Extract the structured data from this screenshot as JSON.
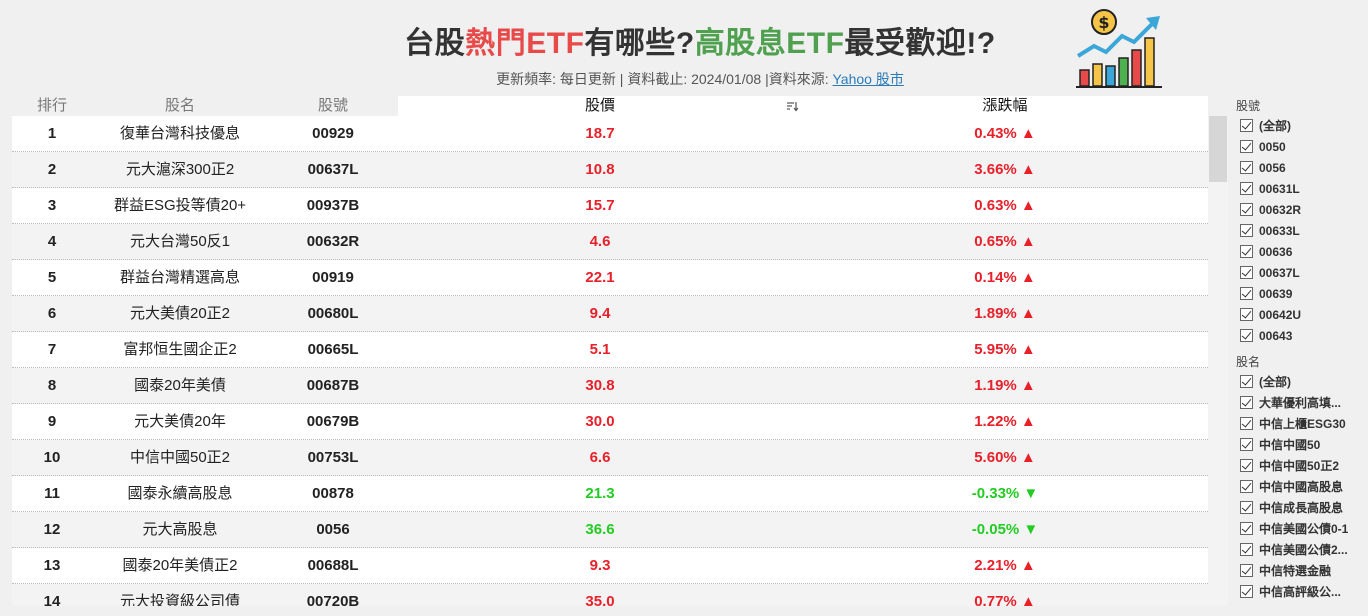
{
  "title": {
    "part1": "台股",
    "part2": "熱門ETF",
    "part3": "有哪些?",
    "part4": "高股息ETF",
    "part5": "最受歡迎!?"
  },
  "subtitle": {
    "text": "更新頻率: 每日更新 | 資料截止: 2024/01/08 |資料來源: ",
    "link": "Yahoo 股市"
  },
  "table": {
    "headers": {
      "rank": "排行",
      "name": "股名",
      "code": "股號",
      "price": "股價",
      "change": "漲跌幅"
    },
    "colors": {
      "up": "#e8202a",
      "down": "#22cc22"
    },
    "rows": [
      {
        "rank": "1",
        "name": "復華台灣科技優息",
        "code": "00929",
        "price": "18.7",
        "change": "0.43%",
        "dir": "up"
      },
      {
        "rank": "2",
        "name": "元大滬深300正2",
        "code": "00637L",
        "price": "10.8",
        "change": "3.66%",
        "dir": "up"
      },
      {
        "rank": "3",
        "name": "群益ESG投等債20+",
        "code": "00937B",
        "price": "15.7",
        "change": "0.63%",
        "dir": "up"
      },
      {
        "rank": "4",
        "name": "元大台灣50反1",
        "code": "00632R",
        "price": "4.6",
        "change": "0.65%",
        "dir": "up"
      },
      {
        "rank": "5",
        "name": "群益台灣精選高息",
        "code": "00919",
        "price": "22.1",
        "change": "0.14%",
        "dir": "up"
      },
      {
        "rank": "6",
        "name": "元大美債20正2",
        "code": "00680L",
        "price": "9.4",
        "change": "1.89%",
        "dir": "up"
      },
      {
        "rank": "7",
        "name": "富邦恒生國企正2",
        "code": "00665L",
        "price": "5.1",
        "change": "5.95%",
        "dir": "up"
      },
      {
        "rank": "8",
        "name": "國泰20年美債",
        "code": "00687B",
        "price": "30.8",
        "change": "1.19%",
        "dir": "up"
      },
      {
        "rank": "9",
        "name": "元大美債20年",
        "code": "00679B",
        "price": "30.0",
        "change": "1.22%",
        "dir": "up"
      },
      {
        "rank": "10",
        "name": "中信中國50正2",
        "code": "00753L",
        "price": "6.6",
        "change": "5.60%",
        "dir": "up"
      },
      {
        "rank": "11",
        "name": "國泰永續高股息",
        "code": "00878",
        "price": "21.3",
        "change": "-0.33%",
        "dir": "down"
      },
      {
        "rank": "12",
        "name": "元大高股息",
        "code": "0056",
        "price": "36.6",
        "change": "-0.05%",
        "dir": "down"
      },
      {
        "rank": "13",
        "name": "國泰20年美債正2",
        "code": "00688L",
        "price": "9.3",
        "change": "2.21%",
        "dir": "up"
      },
      {
        "rank": "14",
        "name": "元大投資級公司債",
        "code": "00720B",
        "price": "35.0",
        "change": "0.77%",
        "dir": "up"
      }
    ]
  },
  "filter_code": {
    "title": "股號",
    "items": [
      "(全部)",
      "0050",
      "0056",
      "00631L",
      "00632R",
      "00633L",
      "00636",
      "00637L",
      "00639",
      "00642U",
      "00643"
    ]
  },
  "filter_name": {
    "title": "股名",
    "items": [
      "(全部)",
      "大華優利高填...",
      "中信上櫃ESG30",
      "中信中國50",
      "中信中國50正2",
      "中信中國高股息",
      "中信成長高股息",
      "中信美國公債0-1",
      "中信美國公債2...",
      "中信特選金融",
      "中信高評級公..."
    ]
  }
}
